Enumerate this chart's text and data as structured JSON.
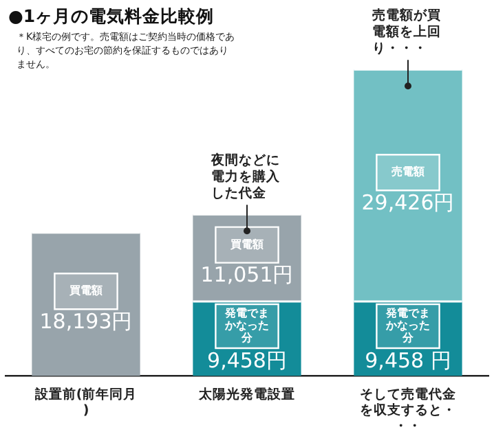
{
  "chart_data": {
    "type": "bar",
    "stacked": true,
    "title": "●1ヶ月の電気料金比較例",
    "subtitle": "＊K様宅の例です。売電額はご契約当時の価格であり、すべてのお宅の節約を保証するものではありません。",
    "categories": [
      "設置前(前年同月)",
      "太陽光発電設置",
      "そして売電代金を収支すると・・・"
    ],
    "series": [
      {
        "name": "発電でまかなった分",
        "color": "#138c99",
        "values": [
          null,
          9458,
          9458
        ],
        "value_labels": [
          null,
          "9,458円",
          "9,458 円"
        ]
      },
      {
        "name": "買電額",
        "color": "#98a4ab",
        "values": [
          18193,
          11051,
          null
        ],
        "value_labels": [
          "18,193円",
          "11,051円",
          null
        ]
      },
      {
        "name": "売電額",
        "color": "#72c0c4",
        "values": [
          null,
          null,
          29426
        ],
        "value_labels": [
          null,
          null,
          "29,426円"
        ]
      }
    ],
    "ylim": [
      0,
      39000
    ],
    "tick_labels": "x",
    "grid": false,
    "legend": false,
    "annotations": [
      {
        "text": "夜間などに電力を購入した代金",
        "x": "太陽光発電設置",
        "y": 20509
      },
      {
        "text": "売電額が買電額を上回り・・・",
        "x": "そして売電代金を収支すると・・・",
        "y": 38884
      }
    ]
  }
}
